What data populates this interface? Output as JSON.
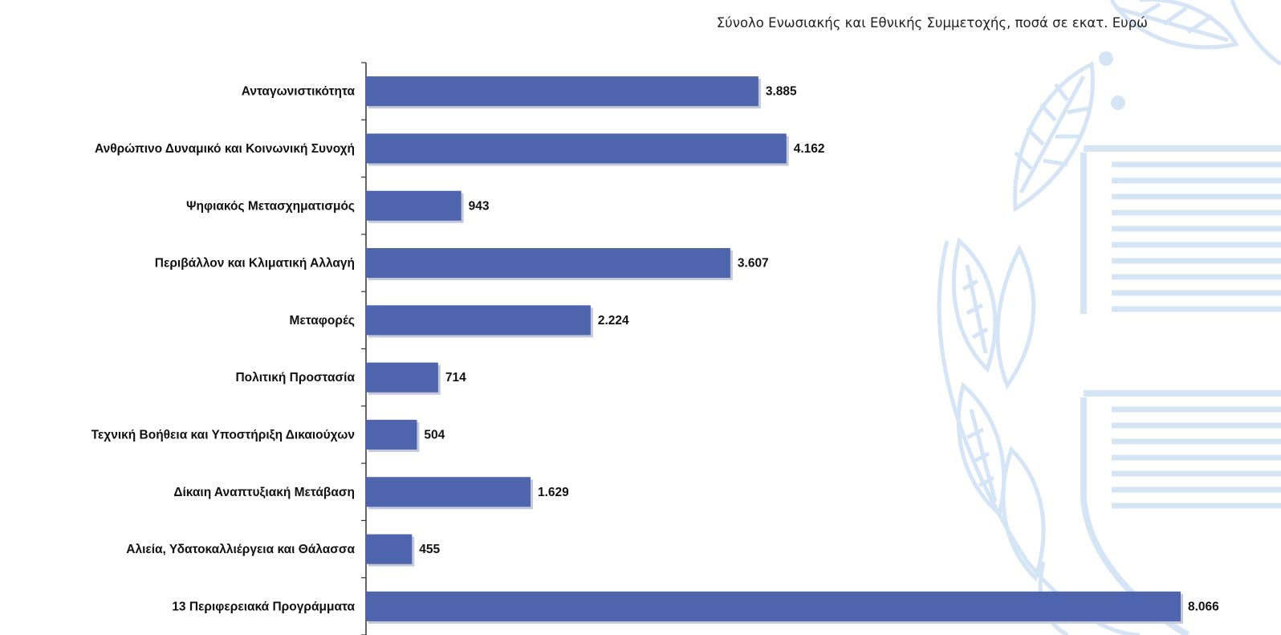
{
  "chart_data": {
    "type": "bar",
    "orientation": "horizontal",
    "title": "",
    "subtitle": "Σύνολο Ενωσιακής και Εθνικής Συμμετοχής, ποσά σε εκατ. Ευρώ",
    "xlabel": "",
    "ylabel": "",
    "categories": [
      "Ανταγωνιστικότητα",
      "Ανθρώπινο Δυναμικό και Κοινωνική Συνοχή",
      "Ψηφιακός Μετασχηματισμός",
      "Περιβάλλον και Κλιματική Αλλαγή",
      "Μεταφορές",
      "Πολιτική Προστασία",
      "Τεχνική Βοήθεια και Υποστήριξη Δικαιούχων",
      "Δίκαιη Αναπτυξιακή Μετάβαση",
      "Αλιεία, Υδατοκαλλιέργεια και Θάλασσα",
      "13 Περιφερειακά Προγράμματα"
    ],
    "values": [
      3885,
      4162,
      943,
      3607,
      2224,
      714,
      504,
      1629,
      455,
      8066
    ],
    "value_labels": [
      "3.885",
      "4.162",
      "943",
      "3.607",
      "2.224",
      "714",
      "504",
      "1.629",
      "455",
      "8.066"
    ],
    "xlim": [
      0,
      8066
    ],
    "grid": false,
    "legend": "none",
    "bar_color": "#4e64ad",
    "shadow_color": "#c4c9dc",
    "watermark_color": "#cfe0f3"
  }
}
